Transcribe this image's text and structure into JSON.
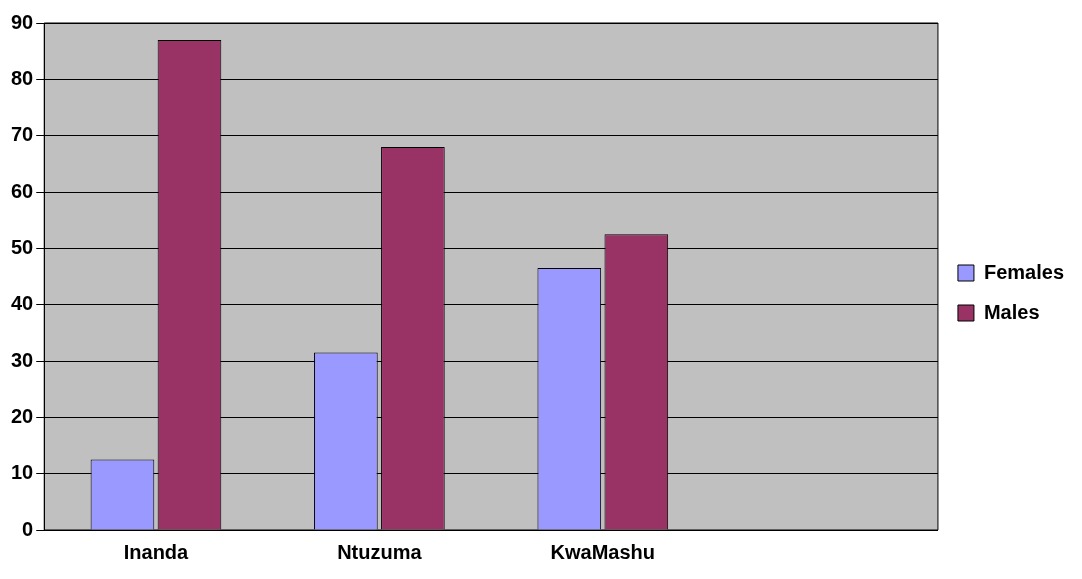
{
  "chart_data": {
    "type": "bar",
    "categories": [
      "Inanda",
      "Ntuzuma",
      "KwaMashu",
      null
    ],
    "series": [
      {
        "name": "Females",
        "color": "#9999ff",
        "values": [
          12.5,
          31.5,
          46.5,
          null
        ]
      },
      {
        "name": "Males",
        "color": "#993366",
        "values": [
          87,
          68,
          52.5,
          null
        ]
      }
    ],
    "ylim": [
      0,
      90
    ],
    "yticks": [
      0,
      10,
      20,
      30,
      40,
      50,
      60,
      70,
      80,
      90
    ],
    "grid": "y",
    "legend": "right"
  }
}
